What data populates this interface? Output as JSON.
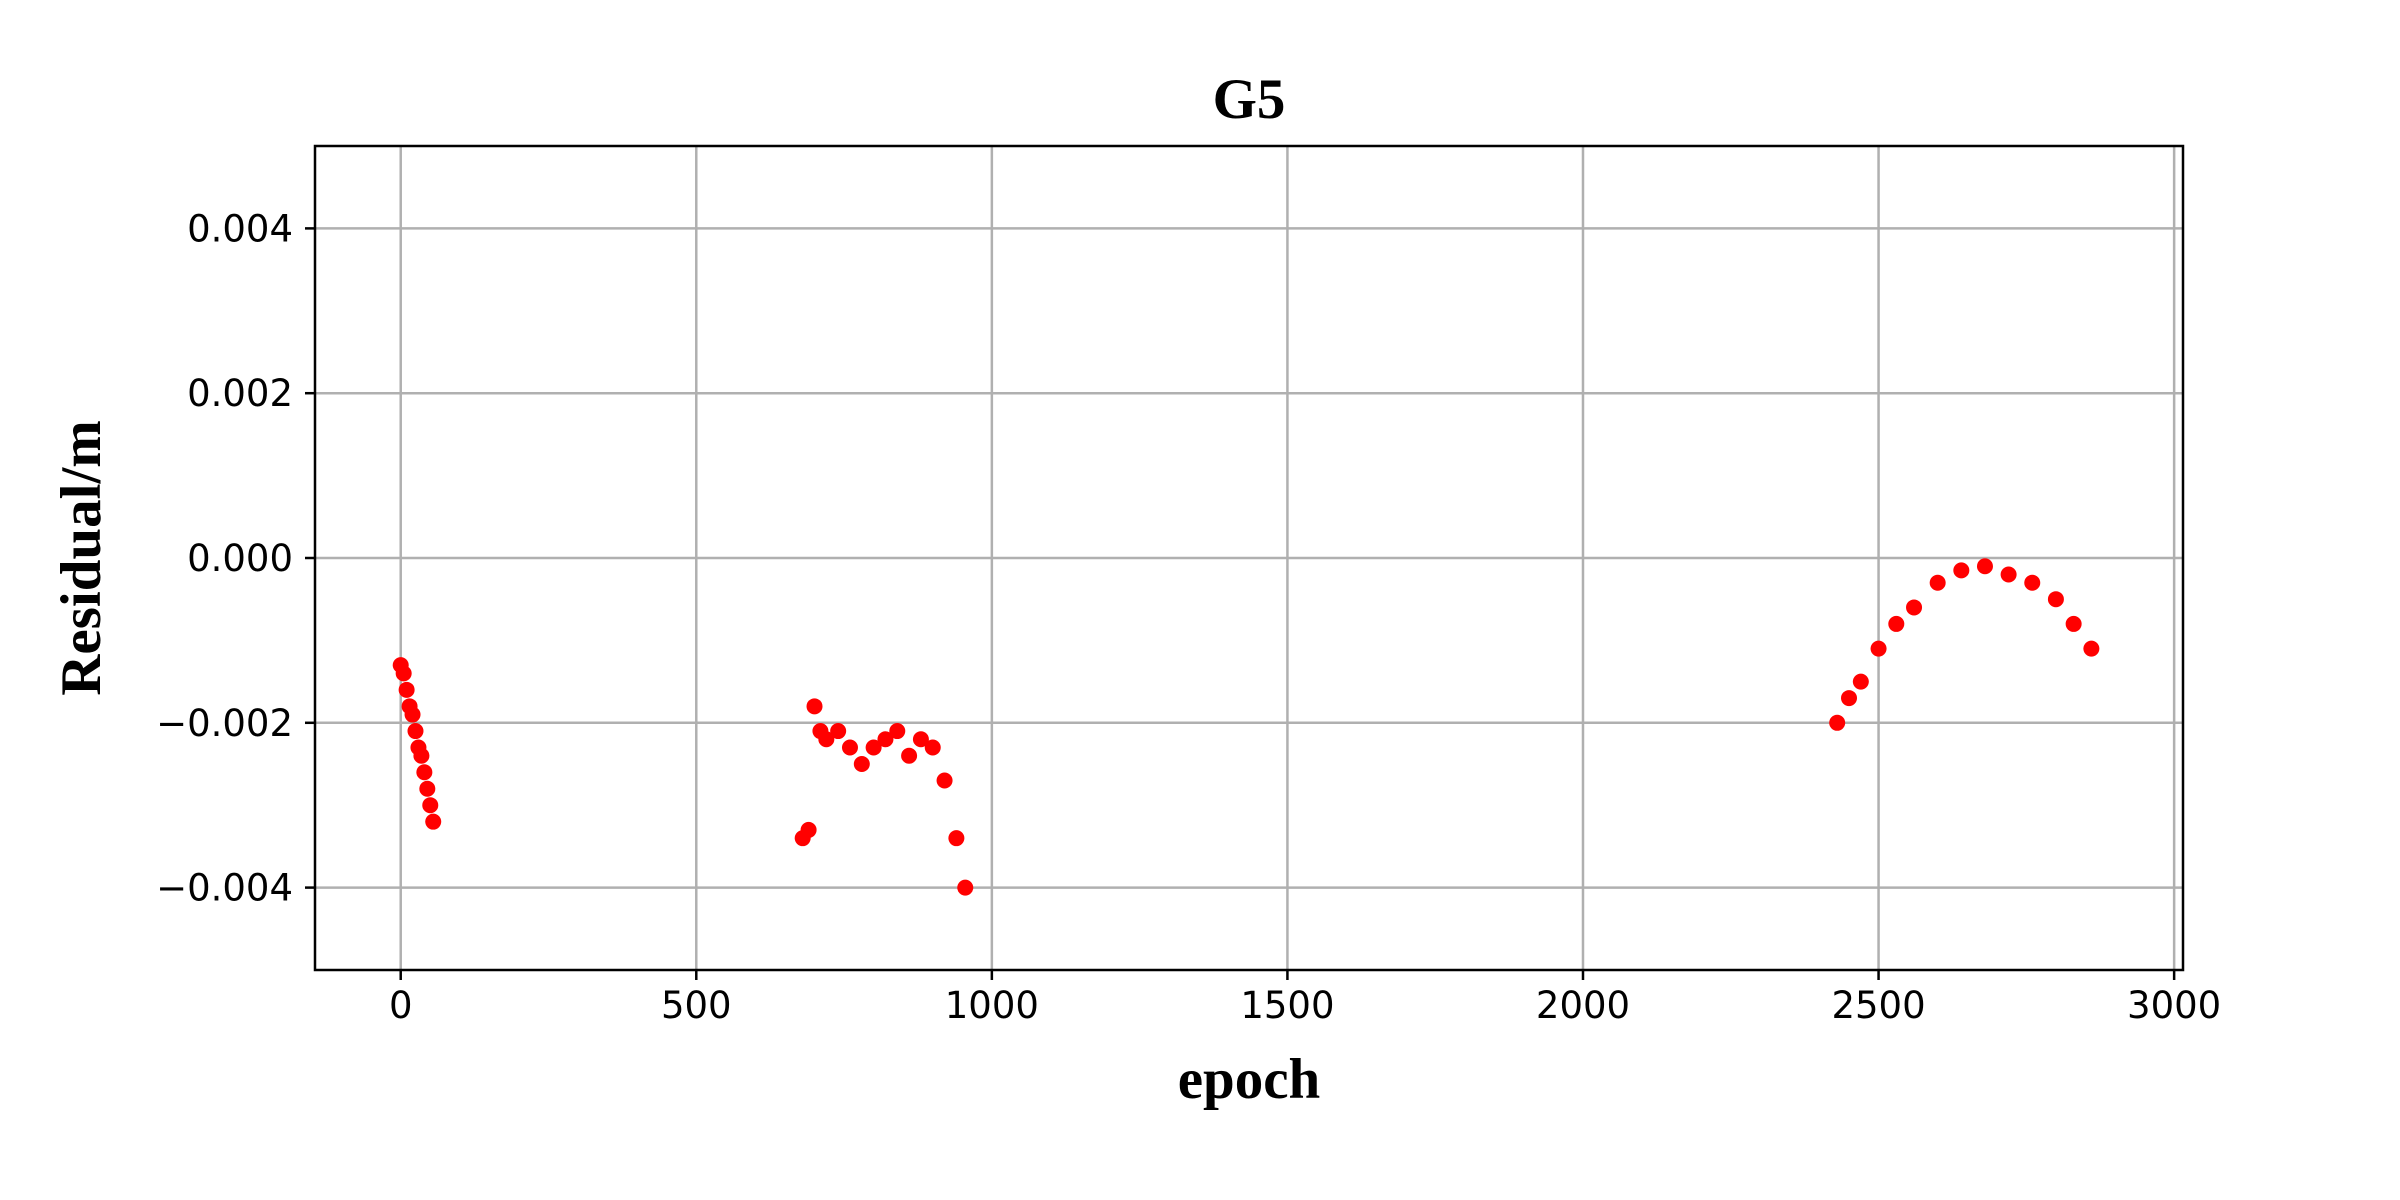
{
  "chart_data": {
    "type": "scatter",
    "title": "G5",
    "xlabel": "epoch",
    "ylabel": "Residual/m",
    "xlim": [
      -145,
      3015
    ],
    "ylim": [
      -0.005,
      0.005
    ],
    "x_ticks": [
      0,
      500,
      1000,
      1500,
      2000,
      2500,
      3000
    ],
    "x_tick_labels": [
      "0",
      "500",
      "1000",
      "1500",
      "2000",
      "2500",
      "3000"
    ],
    "y_ticks": [
      0.004,
      0.002,
      0.0,
      -0.002,
      -0.004
    ],
    "y_tick_labels": [
      "0.004",
      "0.002",
      "0.000",
      "−0.002",
      "−0.004"
    ],
    "grid": true,
    "marker_color": "#ff0000",
    "series": [
      {
        "x": [
          0,
          5,
          10,
          15,
          20,
          25,
          30,
          35,
          40,
          45,
          50,
          55,
          680,
          690,
          700,
          710,
          720,
          740,
          760,
          780,
          800,
          820,
          840,
          860,
          880,
          900,
          920,
          940,
          955,
          2430,
          2450,
          2470,
          2500,
          2530,
          2560,
          2600,
          2640,
          2680,
          2720,
          2760,
          2800,
          2830,
          2860
        ],
        "y": [
          -0.0013,
          -0.0014,
          -0.0016,
          -0.0018,
          -0.0019,
          -0.0021,
          -0.0023,
          -0.0024,
          -0.0026,
          -0.0028,
          -0.003,
          -0.0032,
          -0.0034,
          -0.0033,
          -0.0018,
          -0.0021,
          -0.0022,
          -0.0021,
          -0.0023,
          -0.0025,
          -0.0023,
          -0.0022,
          -0.0021,
          -0.0024,
          -0.0022,
          -0.0023,
          -0.0027,
          -0.0034,
          -0.004,
          -0.002,
          -0.0017,
          -0.0015,
          -0.0011,
          -0.0008,
          -0.0006,
          -0.0003,
          -0.00015,
          -0.0001,
          -0.0002,
          -0.0003,
          -0.0005,
          -0.0008,
          -0.0011
        ]
      }
    ]
  }
}
